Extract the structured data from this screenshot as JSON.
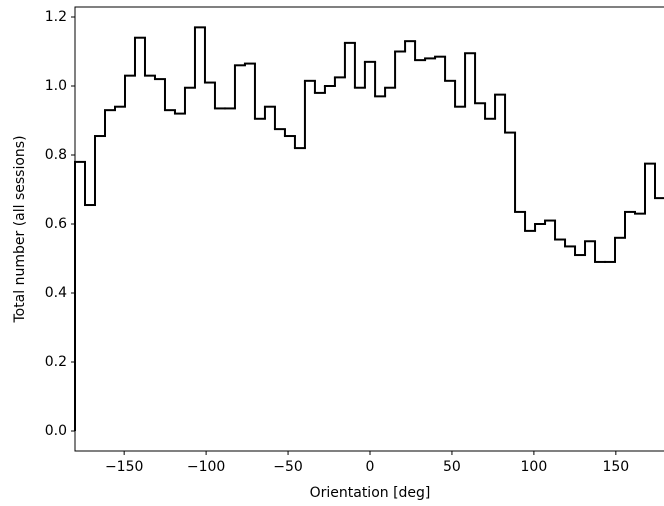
{
  "chart_data": {
    "type": "histogram",
    "xlabel": "Orientation [deg]",
    "ylabel": "Total number (all sessions)",
    "color": "#000000",
    "histtype": "step",
    "bins": [
      -180,
      -173.9,
      -167.8,
      -161.7,
      -155.6,
      -149.5,
      -143.4,
      -137.3,
      -131.2,
      -125.1,
      -119.0,
      -112.9,
      -106.8,
      -100.7,
      -94.6,
      -88.5,
      -82.4,
      -76.3,
      -70.2,
      -64.1,
      -58.0,
      -51.9,
      -45.8,
      -39.7,
      -33.6,
      -27.5,
      -21.4,
      -15.3,
      -9.2,
      -3.1,
      3.1,
      9.2,
      15.3,
      21.4,
      27.5,
      33.6,
      39.7,
      45.8,
      51.9,
      58.0,
      64.1,
      70.2,
      76.3,
      82.4,
      88.5,
      94.6,
      100.7,
      106.8,
      112.9,
      119.0,
      125.1,
      131.2,
      137.3,
      143.4,
      149.5,
      155.6,
      161.7,
      167.8,
      173.9,
      180
    ],
    "values": [
      0.78,
      0.655,
      0.855,
      0.93,
      0.94,
      1.03,
      1.14,
      1.03,
      1.02,
      0.93,
      0.92,
      0.995,
      1.17,
      1.01,
      0.935,
      0.935,
      1.06,
      1.065,
      0.905,
      0.94,
      0.875,
      0.855,
      0.82,
      1.015,
      0.98,
      1.0,
      1.025,
      1.125,
      0.995,
      1.07,
      0.97,
      0.995,
      1.1,
      1.13,
      1.075,
      1.08,
      1.085,
      1.015,
      0.94,
      1.095,
      0.95,
      0.905,
      0.975,
      0.865,
      0.635,
      0.58,
      0.6,
      0.61,
      0.555,
      0.535,
      0.51,
      0.55,
      0.49,
      0.49,
      0.56,
      0.635,
      0.63,
      0.775,
      0.675
    ],
    "xlim": [
      -180,
      180
    ],
    "ylim": [
      -0.058,
      1.229
    ],
    "xticks": [
      {
        "value": -150,
        "label": "−150"
      },
      {
        "value": -100,
        "label": "−100"
      },
      {
        "value": -50,
        "label": "−50"
      },
      0,
      50,
      100,
      150
    ],
    "yticks": [
      {
        "value": 0,
        "label": "0.0"
      },
      0.2,
      0.4,
      0.6,
      0.8,
      {
        "value": 1,
        "label": "1.0"
      },
      1.2
    ]
  }
}
